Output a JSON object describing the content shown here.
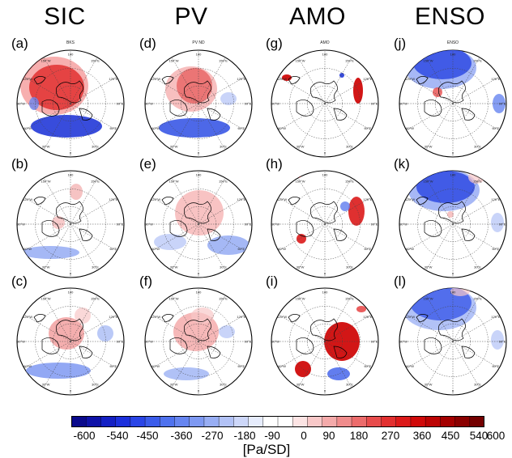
{
  "columns": [
    {
      "id": "sic",
      "title": "SIC"
    },
    {
      "id": "pv",
      "title": "PV"
    },
    {
      "id": "amo",
      "title": "AMO"
    },
    {
      "id": "enso",
      "title": "ENSO"
    }
  ],
  "panels": [
    {
      "label": "(a)",
      "map_title": "BKS",
      "col": 0,
      "row": 0
    },
    {
      "label": "(b)",
      "map_title": "",
      "col": 0,
      "row": 1
    },
    {
      "label": "(c)",
      "map_title": "",
      "col": 0,
      "row": 2
    },
    {
      "label": "(d)",
      "map_title": "PV ND",
      "col": 1,
      "row": 0
    },
    {
      "label": "(e)",
      "map_title": "",
      "col": 1,
      "row": 1
    },
    {
      "label": "(f)",
      "map_title": "",
      "col": 1,
      "row": 2
    },
    {
      "label": "(g)",
      "map_title": "AMO",
      "col": 2,
      "row": 0
    },
    {
      "label": "(h)",
      "map_title": "",
      "col": 2,
      "row": 1
    },
    {
      "label": "(i)",
      "map_title": "",
      "col": 2,
      "row": 2
    },
    {
      "label": "(j)",
      "map_title": "ENSO",
      "col": 3,
      "row": 0
    },
    {
      "label": "(k)",
      "map_title": "",
      "col": 3,
      "row": 1
    },
    {
      "label": "(l)",
      "map_title": "",
      "col": 3,
      "row": 2
    }
  ],
  "longitude_labels": [
    "180",
    "150°E",
    "120°E",
    "90°E",
    "60°E",
    "30°E",
    "0",
    "30°W",
    "60°W",
    "90°W",
    "120°W",
    "150°W"
  ],
  "colorbar": {
    "ticks": [
      "-600",
      "-540",
      "-450",
      "-360",
      "-270",
      "-180",
      "-90",
      "0",
      "90",
      "180",
      "270",
      "360",
      "450",
      "540",
      "600"
    ],
    "colors": [
      "#0a0a8c",
      "#0e12a8",
      "#1420c4",
      "#1c30dc",
      "#2a45e6",
      "#3b5cea",
      "#4f72ee",
      "#6685f0",
      "#7e99f2",
      "#98aef4",
      "#b2c2f6",
      "#cdd7f9",
      "#e6ecfc",
      "#ffffff",
      "#ffffff",
      "#fce4e4",
      "#f8c8c8",
      "#f4aaaa",
      "#f08c8c",
      "#ec6c6c",
      "#e84c4c",
      "#e23030",
      "#dc1a1a",
      "#d00a0a",
      "#bc0404",
      "#a40000",
      "#8a0000",
      "#740000"
    ],
    "unit": "[Pa/SD]"
  },
  "chart_data": {
    "type": "heatmap",
    "title": "",
    "rows": [
      "(a)-(j)",
      "(b)-(k)",
      "(c)-(l)"
    ],
    "columns": [
      "SIC",
      "PV",
      "AMO",
      "ENSO"
    ],
    "colorbar_range": [
      -600,
      600
    ],
    "colorbar_unit": "[Pa/SD]"
  }
}
